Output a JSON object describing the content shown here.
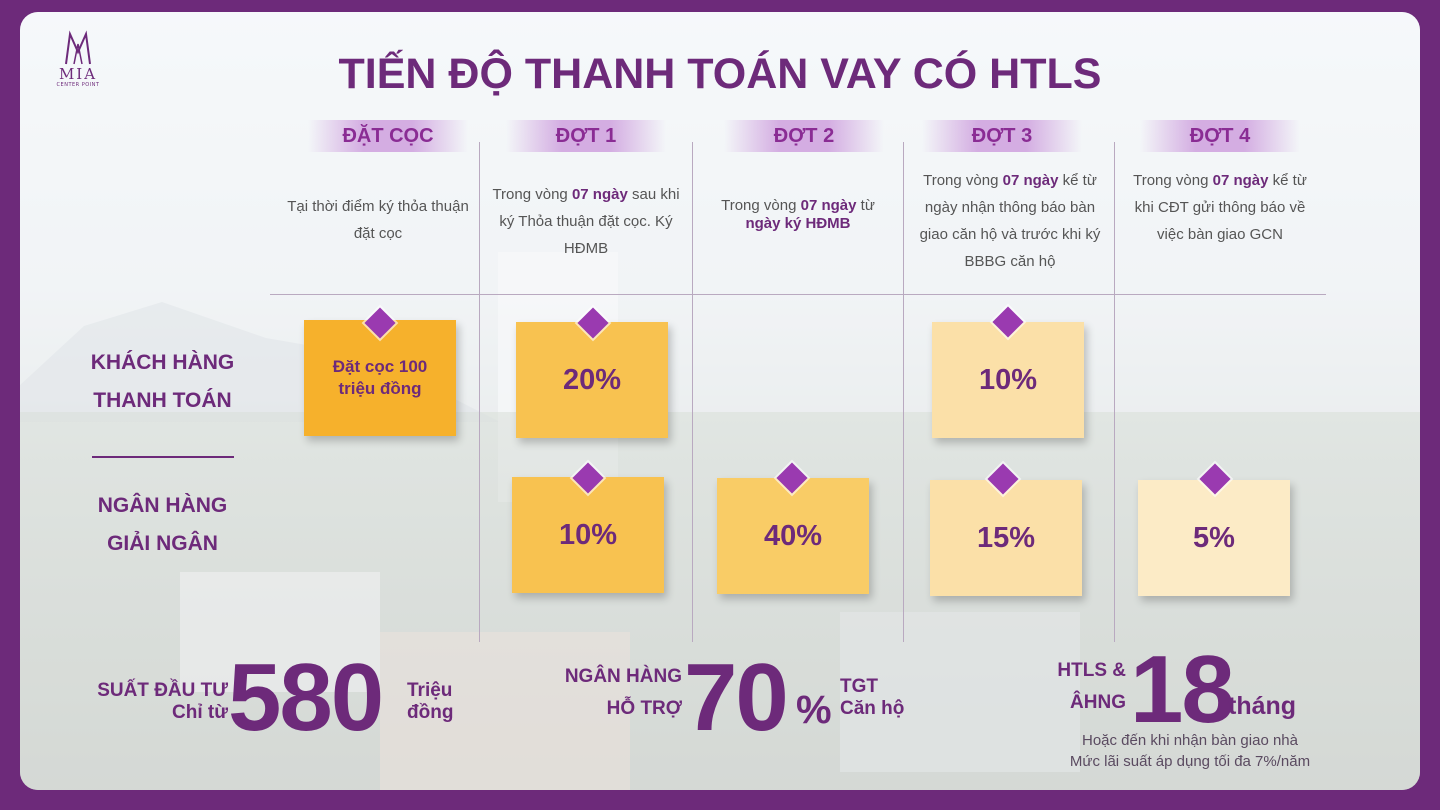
{
  "brand": {
    "name": "MIA",
    "sub": "CENTER POINT"
  },
  "title": "TIẾN ĐỘ THANH TOÁN VAY CÓ HTLS",
  "columns": [
    {
      "head": "ĐẶT CỌC",
      "desc_html": "Tại thời điểm ký thỏa thuận đặt cọc"
    },
    {
      "head": "ĐỢT 1",
      "desc_html": "Trong vòng <b>07 ngày</b> sau khi ký Thỏa thuận đặt cọc. Ký HĐMB"
    },
    {
      "head": "ĐỢT 2",
      "desc_html": "Trong vòng <b>07 ngày</b> từ <b>ngày ký HĐMB</b>"
    },
    {
      "head": "ĐỢT 3",
      "desc_html": "Trong vòng <b>07 ngày</b> kể từ ngày nhận thông báo bàn giao căn hộ và trước khi ký BBBG căn hộ"
    },
    {
      "head": "ĐỢT 4",
      "desc_html": "Trong vòng <b>07 ngày</b> kể từ khi CĐT gửi thông báo về việc bàn giao GCN"
    }
  ],
  "rows": {
    "customer": {
      "line1": "KHÁCH HÀNG",
      "line2": "THANH TOÁN"
    },
    "bank": {
      "line1": "NGÂN HÀNG",
      "line2": "GIẢI NGÂN"
    }
  },
  "boxes": {
    "deposit": "Đặt cọc 100 triệu đồng",
    "c1": "20%",
    "c3": "10%",
    "b1": "10%",
    "b2": "40%",
    "b3": "15%",
    "b4": "5%"
  },
  "box_colors": {
    "deposit": "#f6b12c",
    "c1": "#f8c250",
    "c3": "#fbe0a8",
    "b1": "#f8c250",
    "b2": "#f9cc66",
    "b3": "#fbe0a8",
    "b4": "#fcebc6"
  },
  "stats": {
    "invest_label1": "SUẤT ĐẦU TƯ",
    "invest_label2": "Chỉ từ",
    "invest_value": "580",
    "invest_unit1": "Triệu",
    "invest_unit2": "đồng",
    "bank_label1": "NGÂN HÀNG",
    "bank_label2": "HỖ TRỢ",
    "bank_value": "70",
    "bank_pct": "%",
    "bank_unit1": "TGT",
    "bank_unit2": "Căn hộ",
    "htls_label1": "HTLS &",
    "htls_label2": "ÂHNG",
    "htls_value": "18",
    "htls_unit": "tháng",
    "note1": "Hoặc đến khi nhận bàn giao nhà",
    "note2": "Mức lãi suất áp dụng tối đa 7%/năm"
  },
  "accent": "#6d2a7a"
}
